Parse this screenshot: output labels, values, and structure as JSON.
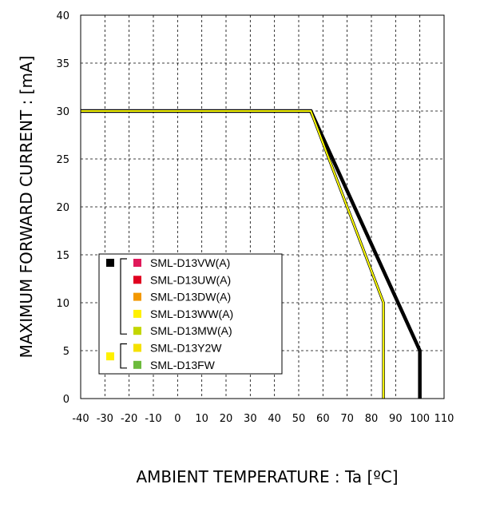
{
  "chart_data": {
    "type": "line",
    "xlabel": "AMBIENT TEMPERATURE : Ta [ºC]",
    "ylabel": "MAXIMUM FORWARD CURRENT :  [mA]",
    "xlim": [
      -40,
      110
    ],
    "ylim": [
      0,
      40
    ],
    "xticks": [
      -40,
      -30,
      -20,
      -10,
      0,
      10,
      20,
      30,
      40,
      50,
      60,
      70,
      80,
      90,
      100,
      110
    ],
    "yticks": [
      0,
      5,
      10,
      15,
      20,
      25,
      30,
      35,
      40
    ],
    "grid": true,
    "grid_style": "dashed",
    "legend_position": "bottom-left",
    "series": [
      {
        "color": "#000000",
        "points": [
          [
            -40,
            30
          ],
          [
            55,
            30
          ],
          [
            100,
            5
          ],
          [
            100,
            0
          ]
        ]
      },
      {
        "color": "#ffff00",
        "points": [
          [
            -40,
            30
          ],
          [
            55,
            30
          ],
          [
            85,
            10
          ],
          [
            85,
            0
          ]
        ]
      }
    ],
    "legend": {
      "groups": [
        {
          "marker_color": "#000000",
          "items": [
            {
              "label": "SML-D13VW(A)",
              "color": "#e0195a"
            },
            {
              "label": "SML-D13UW(A)",
              "color": "#e00020"
            },
            {
              "label": "SML-D13DW(A)",
              "color": "#f39800"
            },
            {
              "label": "SML-D13WW(A)",
              "color": "#fff100"
            },
            {
              "label": "SML-D13MW(A)",
              "color": "#c3d600"
            }
          ]
        },
        {
          "marker_color": "#fff100",
          "items": [
            {
              "label": "SML-D13Y2W",
              "color": "#f5e100"
            },
            {
              "label": "SML-D13FW",
              "color": "#6cbb3c"
            }
          ]
        }
      ]
    }
  }
}
